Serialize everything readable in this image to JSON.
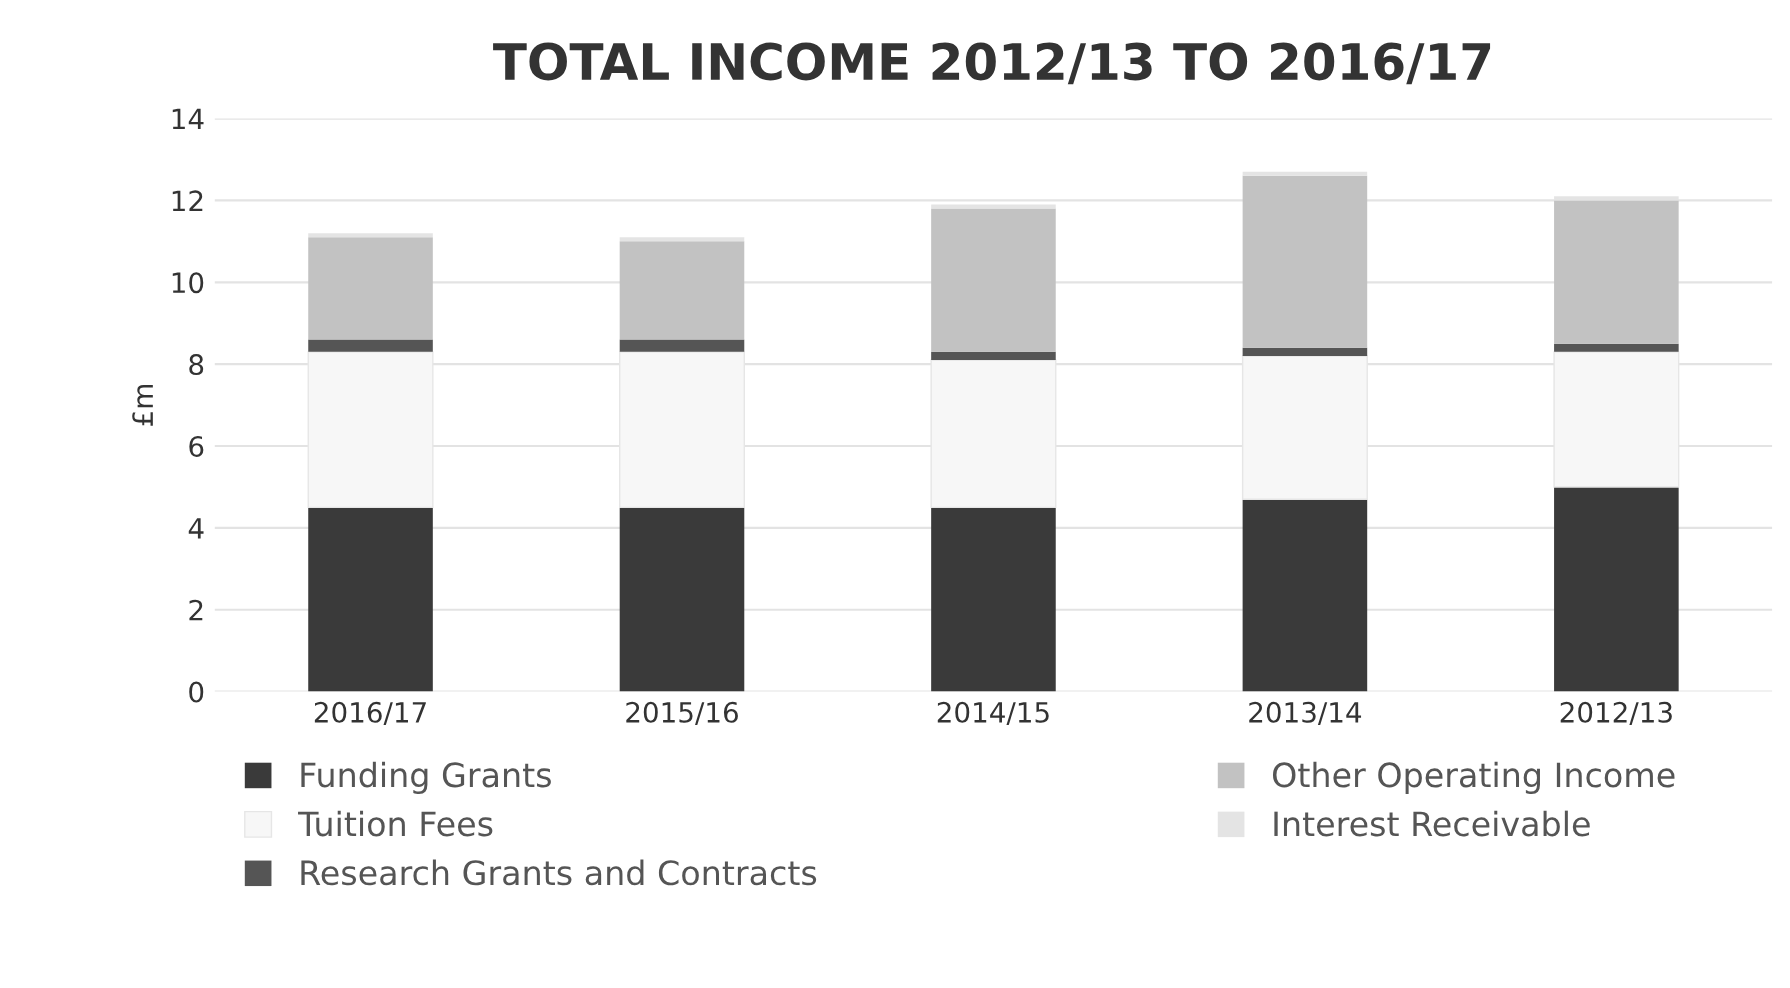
{
  "chart_data": {
    "type": "bar",
    "title": "TOTAL INCOME 2012/13 TO 2016/17",
    "ylabel": "£m",
    "categories": [
      "2016/17",
      "2015/16",
      "2014/15",
      "2013/14",
      "2012/13"
    ],
    "stacked": true,
    "series": [
      {
        "name": "Funding Grants",
        "color": "#3a3a3a",
        "values": [
          4.5,
          4.5,
          4.5,
          4.7,
          5.0
        ]
      },
      {
        "name": "Tuition Fees",
        "color": "#f7f7f7",
        "values": [
          3.8,
          3.8,
          3.6,
          3.5,
          3.3
        ]
      },
      {
        "name": "Research Grants and Contracts",
        "color": "#555555",
        "values": [
          0.3,
          0.3,
          0.2,
          0.2,
          0.2
        ]
      },
      {
        "name": "Other Operating Income",
        "color": "#c2c2c2",
        "values": [
          2.5,
          2.4,
          3.5,
          4.2,
          3.5
        ]
      },
      {
        "name": "Interest Receivable",
        "color": "#e4e4e4",
        "values": [
          0.1,
          0.1,
          0.1,
          0.1,
          0.1
        ]
      }
    ],
    "ylim": [
      0,
      14
    ],
    "yticks": [
      0,
      2,
      4,
      6,
      8,
      10,
      12,
      14
    ],
    "grid": "y",
    "legend": "bottom"
  }
}
